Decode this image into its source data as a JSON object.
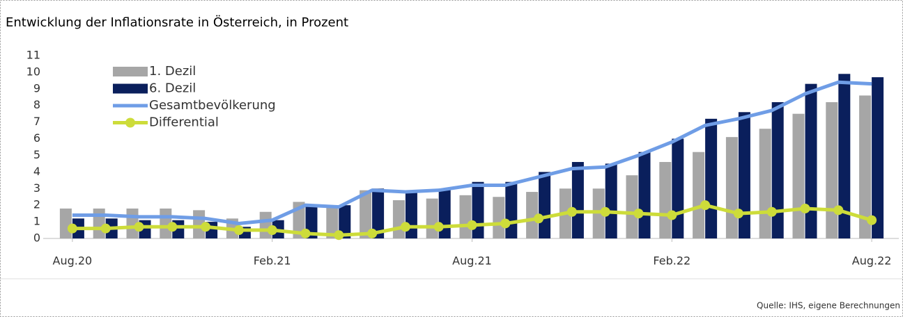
{
  "chart_data": {
    "type": "bar_line",
    "title": "Entwicklung der Inflationsrate in Österreich, in Prozent",
    "categories": [
      "Aug.20",
      null,
      null,
      null,
      null,
      null,
      "Feb.21",
      null,
      null,
      null,
      null,
      null,
      "Aug.21",
      null,
      null,
      null,
      null,
      null,
      "Feb.22",
      null,
      null,
      null,
      null,
      null,
      "Aug.22"
    ],
    "series": [
      {
        "name": "1. Dezil",
        "kind": "bar",
        "color": "#a6a6a6",
        "values": [
          1.8,
          1.8,
          1.8,
          1.8,
          1.7,
          1.2,
          1.6,
          2.2,
          2.0,
          2.9,
          2.3,
          2.4,
          2.6,
          2.5,
          2.8,
          3.0,
          3.0,
          3.8,
          4.6,
          5.2,
          6.1,
          6.6,
          7.5,
          8.2,
          8.6
        ]
      },
      {
        "name": "6. Dezil",
        "kind": "bar",
        "color": "#0a1f5c",
        "values": [
          1.2,
          1.2,
          1.1,
          1.1,
          1.0,
          0.7,
          1.1,
          2.0,
          2.0,
          3.0,
          2.8,
          3.0,
          3.4,
          3.4,
          4.0,
          4.6,
          4.5,
          5.2,
          6.0,
          7.2,
          7.6,
          8.2,
          9.3,
          9.9,
          9.7
        ]
      },
      {
        "name": "Gesamtbevölkerung",
        "kind": "line",
        "color": "#6f9de6",
        "values": [
          1.4,
          1.4,
          1.3,
          1.3,
          1.2,
          0.9,
          1.1,
          2.0,
          1.9,
          2.9,
          2.8,
          2.9,
          3.2,
          3.2,
          3.7,
          4.2,
          4.3,
          5.0,
          5.8,
          6.8,
          7.2,
          7.7,
          8.7,
          9.4,
          9.3
        ]
      },
      {
        "name": "Differential",
        "kind": "line-marker",
        "color": "#cddc3a",
        "values": [
          0.6,
          0.6,
          0.7,
          0.7,
          0.7,
          0.5,
          0.5,
          0.3,
          0.2,
          0.3,
          0.7,
          0.7,
          0.8,
          0.9,
          1.2,
          1.6,
          1.6,
          1.5,
          1.4,
          2.0,
          1.5,
          1.6,
          1.8,
          1.7,
          1.1
        ]
      }
    ],
    "ylim": [
      0,
      11
    ],
    "yticks": [
      0,
      1,
      2,
      3,
      4,
      5,
      6,
      7,
      8,
      9,
      10,
      11
    ],
    "source": "Quelle: IHS, eigene Berechnungen"
  }
}
